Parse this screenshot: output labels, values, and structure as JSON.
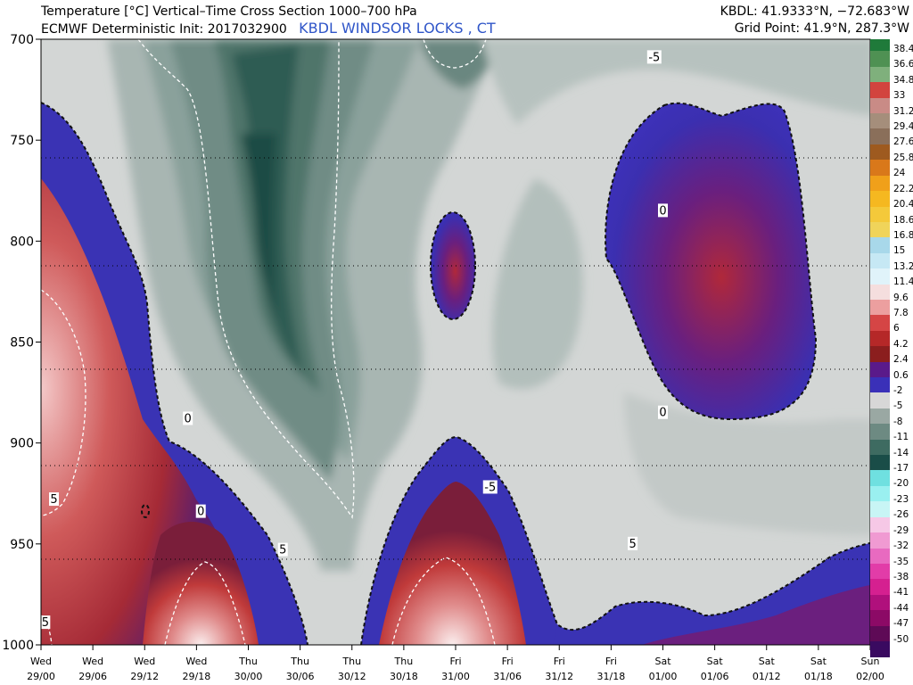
{
  "header": {
    "title": "Temperature [°C] Vertical–Time Cross Section 1000–700 hPa",
    "model": "ECMWF Deterministic Init: 2017032900",
    "station": "KBDL WINDSOR LOCKS , CT",
    "station_coords": "KBDL: 41.9333°N, −72.683°W",
    "grid_point": "Grid Point: 41.9°N, 287.3°W"
  },
  "chart_data": {
    "type": "heatmap",
    "title": "Temperature [°C] Vertical–Time Cross Section 1000–700 hPa",
    "ylabel": "",
    "xlabel": "",
    "y_axis": {
      "scale": "pressure-linear-inverted",
      "range": [
        700,
        1000
      ],
      "ticks": [
        "700",
        "750",
        "800",
        "850",
        "900",
        "950",
        "1000"
      ]
    },
    "x_axis": {
      "range": [
        "29/00",
        "02/00"
      ],
      "ticks": [
        {
          "day": "Wed",
          "time": "29/00"
        },
        {
          "day": "Wed",
          "time": "29/06"
        },
        {
          "day": "Wed",
          "time": "29/12"
        },
        {
          "day": "Wed",
          "time": "29/18"
        },
        {
          "day": "Thu",
          "time": "30/00"
        },
        {
          "day": "Thu",
          "time": "30/06"
        },
        {
          "day": "Thu",
          "time": "30/12"
        },
        {
          "day": "Thu",
          "time": "30/18"
        },
        {
          "day": "Fri",
          "time": "31/00"
        },
        {
          "day": "Fri",
          "time": "31/06"
        },
        {
          "day": "Fri",
          "time": "31/12"
        },
        {
          "day": "Fri",
          "time": "31/18"
        },
        {
          "day": "Sat",
          "time": "01/00"
        },
        {
          "day": "Sat",
          "time": "01/06"
        },
        {
          "day": "Sat",
          "time": "01/12"
        },
        {
          "day": "Sat",
          "time": "01/18"
        },
        {
          "day": "Sun",
          "time": "02/00"
        }
      ]
    },
    "grid": "dotted horizontal lines at 750, 800, 850, 900, 950 hPa",
    "contour_labels": [
      {
        "text": "-5",
        "time_h": 71,
        "p": 709
      },
      {
        "text": "0",
        "time_h": 108,
        "p": 728
      },
      {
        "text": "0",
        "time_h": 72,
        "p": 785
      },
      {
        "text": "0",
        "time_h": 17,
        "p": 888
      },
      {
        "text": "0",
        "time_h": 72,
        "p": 885
      },
      {
        "text": "-5",
        "time_h": 52,
        "p": 922
      },
      {
        "text": "0",
        "time_h": 18.5,
        "p": 934
      },
      {
        "text": "5",
        "time_h": 1.5,
        "p": 928
      },
      {
        "text": "5",
        "time_h": 28,
        "p": 953
      },
      {
        "text": "5",
        "time_h": 68.5,
        "p": 950
      },
      {
        "text": "0",
        "time_h": 119.5,
        "p": 877
      },
      {
        "text": "0",
        "time_h": 115,
        "p": 985
      },
      {
        "text": "5",
        "time_h": 0.5,
        "p": 989
      }
    ],
    "colorbar": {
      "labels": [
        "38.4",
        "36.6",
        "34.8",
        "33",
        "31.2",
        "29.4",
        "27.6",
        "25.8",
        "24",
        "22.2",
        "20.4",
        "18.6",
        "16.8",
        "15",
        "13.2",
        "11.4",
        "9.6",
        "7.8",
        "6",
        "4.2",
        "2.4",
        "0.6",
        "-2",
        "-5",
        "-8",
        "-11",
        "-14",
        "-17",
        "-20",
        "-23",
        "-26",
        "-29",
        "-32",
        "-35",
        "-38",
        "-41",
        "-44",
        "-47",
        "-50"
      ],
      "colors": [
        "#1f7a3a",
        "#4f9153",
        "#7fb07c",
        "#d2443e",
        "#c98b86",
        "#a58e7b",
        "#8a6f5a",
        "#9e5a1f",
        "#d9781a",
        "#f0a01a",
        "#f5b820",
        "#f4c93a",
        "#f0d45a",
        "#a8d8ea",
        "#c6e8f4",
        "#e0f3fa",
        "#f5dede",
        "#ec9f9f",
        "#d54545",
        "#b52828",
        "#8b1e1e",
        "#5a1a8a",
        "#3a30b8",
        "#d7d7d7",
        "#9aa8a3",
        "#6d8a82",
        "#3e6b61",
        "#1a4d48",
        "#6fe0e0",
        "#9af0f0",
        "#c8f5f5",
        "#f6c8e6",
        "#f09ad2",
        "#e86ac0",
        "#e23ca8",
        "#d52090",
        "#b0107c",
        "#8c0a66",
        "#5e0a56",
        "#3a0a60"
      ]
    }
  }
}
